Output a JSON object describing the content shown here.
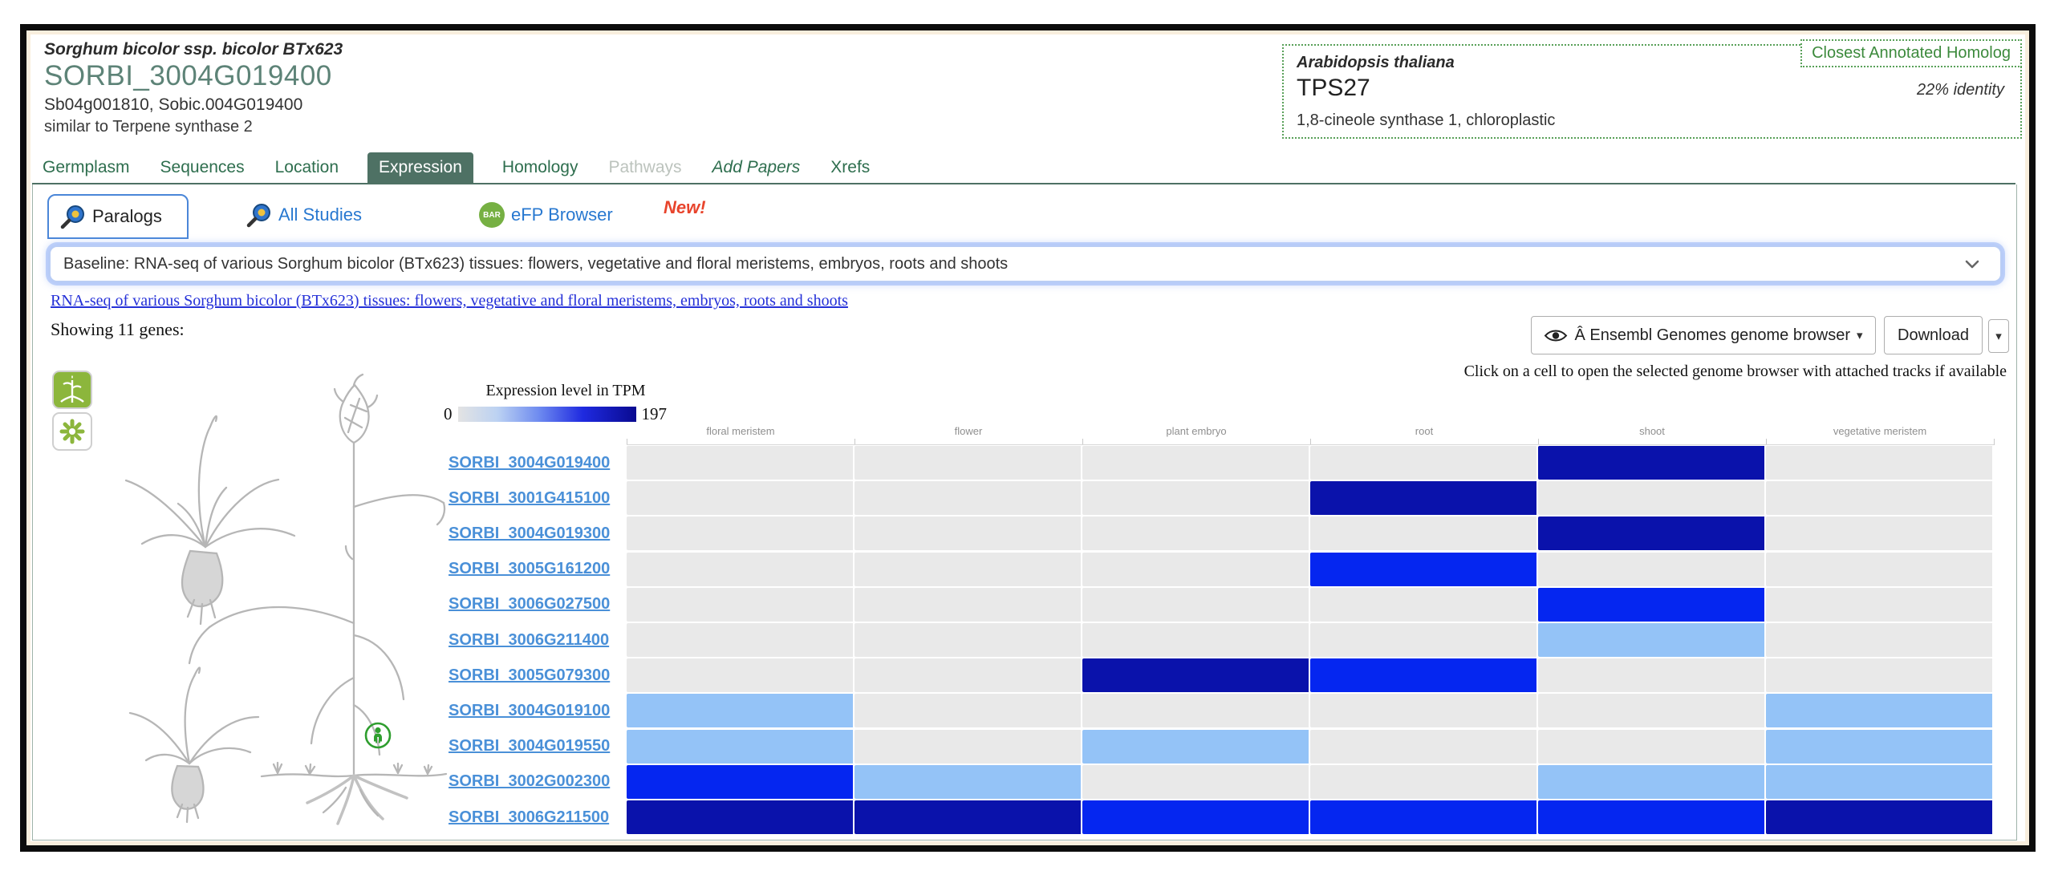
{
  "header": {
    "species": "Sorghum bicolor ssp. bicolor BTx623",
    "gene_id": "SORBI_3004G019400",
    "synonyms": "Sb04g001810, Sobic.004G019400",
    "description": "similar to Terpene synthase 2"
  },
  "homolog": {
    "badge": "Closest Annotated Homolog",
    "species": "Arabidopsis thaliana",
    "gene": "TPS27",
    "identity": "22% identity",
    "description": "1,8-cineole synthase 1, chloroplastic"
  },
  "tabs": [
    {
      "label": "Germplasm"
    },
    {
      "label": "Sequences"
    },
    {
      "label": "Location"
    },
    {
      "label": "Expression",
      "active": true
    },
    {
      "label": "Homology"
    },
    {
      "label": "Pathways",
      "disabled": true
    },
    {
      "label": "Add Papers",
      "italic": true
    },
    {
      "label": "Xrefs"
    }
  ],
  "subtabs": {
    "paralogs": "Paralogs",
    "all_studies": "All Studies",
    "efp_browser": "eFP Browser",
    "new_flag": "New!",
    "bar_badge": "BAR"
  },
  "study_select": {
    "value": "Baseline: RNA-seq of various Sorghum bicolor (BTx623) tissues: flowers, vegetative and floral meristems, embryos, roots and shoots"
  },
  "study_link": "RNA-seq of various Sorghum bicolor (BTx623) tissues: flowers, vegetative and floral meristems, embryos, roots and shoots",
  "showing_text": "Showing 11 genes:",
  "toolbar": {
    "browser_button": "Â Ensembl Genomes genome browser",
    "browser_caret": "▾",
    "download_button": "Download",
    "download_caret": "▾",
    "hint": "Click on a cell to open the selected genome browser with attached tracks if available"
  },
  "chart_data": {
    "type": "heatmap",
    "legend": {
      "title": "Expression level in TPM",
      "min": "0",
      "max": "197"
    },
    "scale": {
      "min": 0,
      "max": 197,
      "units": "TPM"
    },
    "columns": [
      "floral meristem",
      "flower",
      "plant embryo",
      "root",
      "shoot",
      "vegetative meristem"
    ],
    "rows": [
      "SORBI_3004G019400",
      "SORBI_3001G415100",
      "SORBI_3004G019300",
      "SORBI_3005G161200",
      "SORBI_3006G027500",
      "SORBI_3006G211400",
      "SORBI_3005G079300",
      "SORBI_3004G019100",
      "SORBI_3004G019550",
      "SORBI_3002G002300",
      "SORBI_3006G211500"
    ],
    "values": [
      [
        0,
        0,
        0,
        0,
        3,
        0
      ],
      [
        0,
        0,
        0,
        3,
        0,
        0
      ],
      [
        0,
        0,
        0,
        0,
        3,
        0
      ],
      [
        0,
        0,
        0,
        2,
        0,
        0
      ],
      [
        0,
        0,
        0,
        0,
        2,
        0
      ],
      [
        0,
        0,
        0,
        0,
        1,
        0
      ],
      [
        0,
        0,
        3,
        2,
        0,
        0
      ],
      [
        1,
        0,
        0,
        0,
        0,
        1
      ],
      [
        1,
        0,
        1,
        0,
        0,
        1
      ],
      [
        2,
        1,
        0,
        0,
        1,
        1
      ],
      [
        3,
        3,
        2,
        2,
        2,
        3
      ]
    ],
    "level_colors": {
      "0": "#e9e9e9",
      "1": "#94c3f7",
      "2": "#0526f0",
      "3": "#0a12ab"
    },
    "level_meaning": {
      "0": "no / negligible expression",
      "1": "low expression",
      "2": "medium-high expression",
      "3": "high expression (near 197 TPM)"
    }
  },
  "colors": {
    "accent_green": "#4e7164",
    "tab_green": "#2e6e4e",
    "link_blue": "#2878d0",
    "gene_link_blue": "#4a90d8",
    "badge_green": "#3c8a3c",
    "new_red": "#e8442c",
    "toggle_green": "#8cb63c"
  }
}
